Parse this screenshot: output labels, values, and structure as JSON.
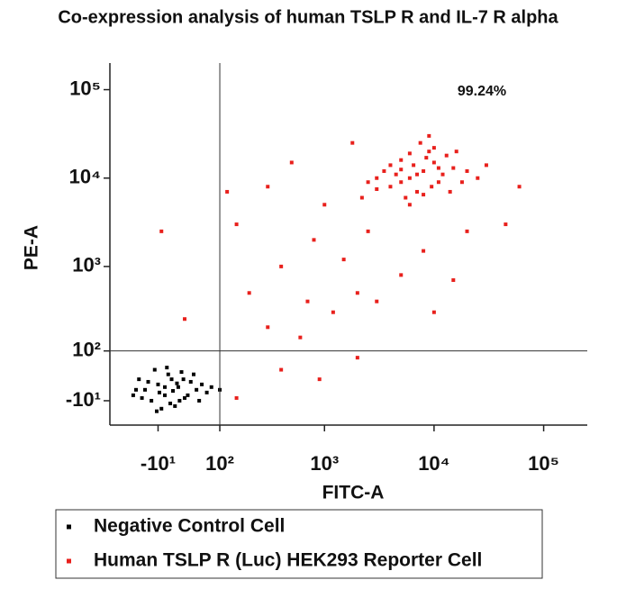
{
  "chart_data": {
    "type": "scatter",
    "title": "Co-expression analysis of human TSLP R and IL-7 R alpha",
    "x_label": "FITC-A",
    "y_label": "PE-A",
    "xscale": "asinh",
    "yscale": "asinh",
    "xlim": [
      -100,
      250000
    ],
    "ylim": [
      -60,
      200000
    ],
    "xticks": [
      {
        "value": -10,
        "label": "-10¹"
      },
      {
        "value": 100,
        "label": "10²"
      },
      {
        "value": 1000,
        "label": "10³"
      },
      {
        "value": 10000,
        "label": "10⁴"
      },
      {
        "value": 100000,
        "label": "10⁵"
      }
    ],
    "yticks": [
      {
        "value": -10,
        "label": "-10¹"
      },
      {
        "value": 100,
        "label": "10²"
      },
      {
        "value": 1000,
        "label": "10³"
      },
      {
        "value": 10000,
        "label": "10⁴"
      },
      {
        "value": 100000,
        "label": "10⁵"
      }
    ],
    "gates": {
      "x": 100,
      "y": 100
    },
    "annotation": "99.24%",
    "legend": "bottom",
    "series": [
      {
        "name": "Negative Control Cell",
        "color": "#000000",
        "x": [
          -30,
          -10,
          0,
          10,
          20,
          30,
          -20,
          5,
          40,
          -40,
          15,
          50,
          -5,
          25,
          60,
          -15,
          35,
          70,
          -35,
          0,
          12,
          -8,
          22,
          45,
          -25,
          80,
          8,
          -45,
          28,
          55,
          100,
          -50,
          3,
          18,
          -12
        ],
        "y": [
          10,
          20,
          0,
          30,
          15,
          -5,
          -10,
          40,
          25,
          30,
          -20,
          10,
          -25,
          45,
          20,
          50,
          0,
          5,
          -5,
          15,
          8,
          5,
          -10,
          40,
          25,
          15,
          -15,
          10,
          30,
          -10,
          10,
          0,
          55,
          22,
          -30
        ]
      },
      {
        "name": "Human TSLP R (Luc) HEK293 Reporter Cell",
        "color": "#e8201c",
        "x": [
          6000,
          8000,
          5000,
          10000,
          4000,
          7000,
          12000,
          9000,
          3500,
          6500,
          15000,
          5500,
          4500,
          11000,
          8500,
          3000,
          20000,
          7500,
          5000,
          13000,
          2500,
          6000,
          9500,
          18000,
          4000,
          7000,
          10000,
          3000,
          14000,
          6000,
          8000,
          5000,
          11000,
          2200,
          25000,
          16000,
          9000,
          30000,
          300,
          500,
          150,
          800,
          1500,
          2000,
          700,
          400,
          1200,
          3000,
          5000,
          8000,
          20000,
          15000,
          300,
          600,
          200,
          120,
          1000,
          2500,
          60000,
          45000,
          1800,
          400,
          900,
          2000,
          -5,
          30,
          150,
          10000
        ],
        "y": [
          10000,
          12000,
          9000,
          15000,
          8000,
          7000,
          11000,
          20000,
          12000,
          14000,
          13000,
          6000,
          11000,
          9000,
          17000,
          7500,
          12000,
          25000,
          16000,
          18000,
          9000,
          5000,
          8000,
          9000,
          14000,
          11000,
          22000,
          10000,
          7000,
          19000,
          6500,
          12500,
          13000,
          6000,
          10000,
          20000,
          30000,
          14000,
          8000,
          15000,
          3000,
          2000,
          1200,
          500,
          400,
          1000,
          300,
          400,
          800,
          1500,
          2500,
          700,
          200,
          150,
          500,
          7000,
          5000,
          2500,
          8000,
          3000,
          25000,
          50,
          30,
          80,
          2500,
          250,
          -5,
          300
        ]
      }
    ]
  }
}
